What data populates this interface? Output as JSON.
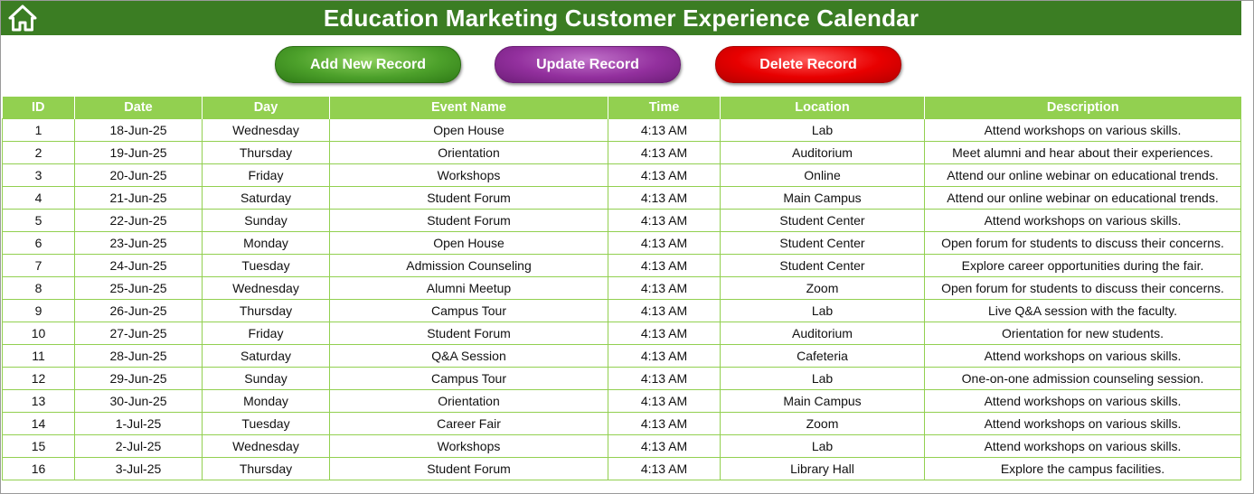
{
  "header": {
    "title": "Education Marketing Customer Experience Calendar",
    "home_icon": "home-icon",
    "bar_color": "#3b7d23"
  },
  "actions": {
    "add_label": "Add New Record",
    "update_label": "Update Record",
    "delete_label": "Delete Record",
    "add_color": "#4da12b",
    "update_color": "#93309e",
    "delete_color": "#e80000"
  },
  "table": {
    "header_color": "#92d050",
    "columns": [
      "ID",
      "Date",
      "Day",
      "Event Name",
      "Time",
      "Location",
      "Description"
    ],
    "rows": [
      [
        "1",
        "18-Jun-25",
        "Wednesday",
        "Open House",
        "4:13 AM",
        "Lab",
        "Attend workshops on various skills."
      ],
      [
        "2",
        "19-Jun-25",
        "Thursday",
        "Orientation",
        "4:13 AM",
        "Auditorium",
        "Meet alumni and hear about their experiences."
      ],
      [
        "3",
        "20-Jun-25",
        "Friday",
        "Workshops",
        "4:13 AM",
        "Online",
        "Attend our online webinar on educational trends."
      ],
      [
        "4",
        "21-Jun-25",
        "Saturday",
        "Student Forum",
        "4:13 AM",
        "Main Campus",
        "Attend our online webinar on educational trends."
      ],
      [
        "5",
        "22-Jun-25",
        "Sunday",
        "Student Forum",
        "4:13 AM",
        "Student Center",
        "Attend workshops on various skills."
      ],
      [
        "6",
        "23-Jun-25",
        "Monday",
        "Open House",
        "4:13 AM",
        "Student Center",
        "Open forum for students to discuss their concerns."
      ],
      [
        "7",
        "24-Jun-25",
        "Tuesday",
        "Admission Counseling",
        "4:13 AM",
        "Student Center",
        "Explore career opportunities during the fair."
      ],
      [
        "8",
        "25-Jun-25",
        "Wednesday",
        "Alumni Meetup",
        "4:13 AM",
        "Zoom",
        "Open forum for students to discuss their concerns."
      ],
      [
        "9",
        "26-Jun-25",
        "Thursday",
        "Campus Tour",
        "4:13 AM",
        "Lab",
        "Live Q&A session with the faculty."
      ],
      [
        "10",
        "27-Jun-25",
        "Friday",
        "Student Forum",
        "4:13 AM",
        "Auditorium",
        "Orientation for new students."
      ],
      [
        "11",
        "28-Jun-25",
        "Saturday",
        "Q&A Session",
        "4:13 AM",
        "Cafeteria",
        "Attend workshops on various skills."
      ],
      [
        "12",
        "29-Jun-25",
        "Sunday",
        "Campus Tour",
        "4:13 AM",
        "Lab",
        "One-on-one admission counseling session."
      ],
      [
        "13",
        "30-Jun-25",
        "Monday",
        "Orientation",
        "4:13 AM",
        "Main Campus",
        "Attend workshops on various skills."
      ],
      [
        "14",
        "1-Jul-25",
        "Tuesday",
        "Career Fair",
        "4:13 AM",
        "Zoom",
        "Attend workshops on various skills."
      ],
      [
        "15",
        "2-Jul-25",
        "Wednesday",
        "Workshops",
        "4:13 AM",
        "Lab",
        "Attend workshops on various skills."
      ],
      [
        "16",
        "3-Jul-25",
        "Thursday",
        "Student Forum",
        "4:13 AM",
        "Library Hall",
        "Explore the campus facilities."
      ]
    ]
  }
}
